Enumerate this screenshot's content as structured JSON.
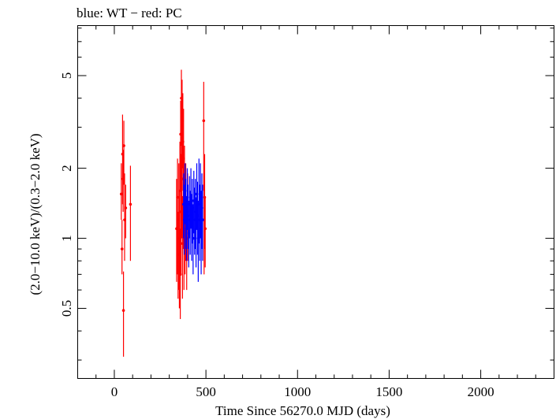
{
  "chart_data": {
    "type": "scatter",
    "title": "blue: WT − red: PC",
    "xlabel": "Time Since 56270.0 MJD (days)",
    "ylabel": "(2.0−10.0 keV)/(0.3−2.0 keV)",
    "xlim": [
      -200,
      2400
    ],
    "ylim": [
      0.25,
      8.2
    ],
    "yscale": "log",
    "xticks": [
      0,
      500,
      1000,
      1500,
      2000
    ],
    "xticklabels": [
      "0",
      "500",
      "1000",
      "1500",
      "2000"
    ],
    "yticks": [
      0.5,
      1,
      2,
      5
    ],
    "yticklabels": [
      "0.5",
      "1",
      "2",
      "5"
    ],
    "grid": false,
    "legend": "none",
    "series": [
      {
        "color": "#ff0000",
        "points": [
          {
            "x": 38,
            "y": 1.55,
            "lo": 1.2,
            "hi": 2.1
          },
          {
            "x": 42,
            "y": 0.9,
            "lo": 0.7,
            "hi": 1.2
          },
          {
            "x": 45,
            "y": 2.3,
            "lo": 1.4,
            "hi": 3.4
          },
          {
            "x": 48,
            "y": 1.8,
            "lo": 1.3,
            "hi": 2.4
          },
          {
            "x": 50,
            "y": 0.49,
            "lo": 0.31,
            "hi": 0.72
          },
          {
            "x": 52,
            "y": 2.5,
            "lo": 1.7,
            "hi": 3.2
          },
          {
            "x": 56,
            "y": 1.2,
            "lo": 0.8,
            "hi": 1.9
          },
          {
            "x": 62,
            "y": 1.35,
            "lo": 1.0,
            "hi": 1.7
          },
          {
            "x": 88,
            "y": 1.4,
            "lo": 0.8,
            "hi": 2.05
          },
          {
            "x": 340,
            "y": 1.1,
            "lo": 0.65,
            "hi": 1.8
          },
          {
            "x": 345,
            "y": 1.5,
            "lo": 0.7,
            "hi": 2.2
          },
          {
            "x": 348,
            "y": 0.85,
            "lo": 0.55,
            "hi": 1.3
          },
          {
            "x": 352,
            "y": 1.2,
            "lo": 0.6,
            "hi": 2.1
          },
          {
            "x": 355,
            "y": 1.0,
            "lo": 0.5,
            "hi": 1.6
          },
          {
            "x": 358,
            "y": 1.6,
            "lo": 0.9,
            "hi": 2.6
          },
          {
            "x": 360,
            "y": 0.7,
            "lo": 0.45,
            "hi": 1.1
          },
          {
            "x": 362,
            "y": 2.8,
            "lo": 1.6,
            "hi": 3.9
          },
          {
            "x": 364,
            "y": 1.3,
            "lo": 0.7,
            "hi": 2.3
          },
          {
            "x": 366,
            "y": 4.0,
            "lo": 2.5,
            "hi": 5.3
          },
          {
            "x": 368,
            "y": 1.8,
            "lo": 1.0,
            "hi": 3.0
          },
          {
            "x": 370,
            "y": 3.2,
            "lo": 2.0,
            "hi": 4.8
          },
          {
            "x": 372,
            "y": 0.95,
            "lo": 0.55,
            "hi": 1.5
          },
          {
            "x": 374,
            "y": 2.6,
            "lo": 1.6,
            "hi": 4.2
          },
          {
            "x": 376,
            "y": 1.5,
            "lo": 0.9,
            "hi": 2.4
          },
          {
            "x": 378,
            "y": 2.2,
            "lo": 1.2,
            "hi": 3.6
          },
          {
            "x": 380,
            "y": 1.1,
            "lo": 0.6,
            "hi": 1.8
          },
          {
            "x": 383,
            "y": 1.7,
            "lo": 0.9,
            "hi": 2.5
          },
          {
            "x": 386,
            "y": 1.2,
            "lo": 0.7,
            "hi": 1.9
          },
          {
            "x": 390,
            "y": 1.4,
            "lo": 0.8,
            "hi": 2.1
          },
          {
            "x": 395,
            "y": 1.0,
            "lo": 0.6,
            "hi": 1.5
          },
          {
            "x": 400,
            "y": 1.3,
            "lo": 0.8,
            "hi": 1.9
          },
          {
            "x": 488,
            "y": 3.2,
            "lo": 1.6,
            "hi": 4.7
          },
          {
            "x": 490,
            "y": 1.2,
            "lo": 0.7,
            "hi": 1.9
          },
          {
            "x": 493,
            "y": 1.5,
            "lo": 0.9,
            "hi": 2.3
          },
          {
            "x": 496,
            "y": 1.1,
            "lo": 0.75,
            "hi": 1.5
          }
        ]
      },
      {
        "color": "#0000ff",
        "points": [
          {
            "x": 378,
            "y": 1.4,
            "lo": 1.0,
            "hi": 1.9
          },
          {
            "x": 382,
            "y": 1.2,
            "lo": 0.85,
            "hi": 1.7
          },
          {
            "x": 386,
            "y": 1.6,
            "lo": 1.15,
            "hi": 2.1
          },
          {
            "x": 390,
            "y": 1.3,
            "lo": 0.9,
            "hi": 1.8
          },
          {
            "x": 394,
            "y": 1.1,
            "lo": 0.8,
            "hi": 1.5
          },
          {
            "x": 398,
            "y": 1.5,
            "lo": 1.1,
            "hi": 2.0
          },
          {
            "x": 402,
            "y": 1.25,
            "lo": 0.9,
            "hi": 1.7
          },
          {
            "x": 406,
            "y": 1.05,
            "lo": 0.75,
            "hi": 1.45
          },
          {
            "x": 410,
            "y": 1.4,
            "lo": 1.0,
            "hi": 1.85
          },
          {
            "x": 414,
            "y": 1.2,
            "lo": 0.85,
            "hi": 1.6
          },
          {
            "x": 418,
            "y": 1.5,
            "lo": 1.1,
            "hi": 2.0
          },
          {
            "x": 422,
            "y": 1.15,
            "lo": 0.8,
            "hi": 1.55
          },
          {
            "x": 426,
            "y": 1.35,
            "lo": 0.95,
            "hi": 1.8
          },
          {
            "x": 430,
            "y": 1.0,
            "lo": 0.7,
            "hi": 1.4
          },
          {
            "x": 434,
            "y": 1.45,
            "lo": 1.05,
            "hi": 1.95
          },
          {
            "x": 438,
            "y": 1.2,
            "lo": 0.85,
            "hi": 1.65
          },
          {
            "x": 442,
            "y": 1.3,
            "lo": 0.9,
            "hi": 1.8
          },
          {
            "x": 446,
            "y": 1.1,
            "lo": 0.75,
            "hi": 1.5
          },
          {
            "x": 450,
            "y": 1.55,
            "lo": 1.1,
            "hi": 2.1
          },
          {
            "x": 454,
            "y": 1.25,
            "lo": 0.85,
            "hi": 1.75
          },
          {
            "x": 458,
            "y": 1.0,
            "lo": 0.65,
            "hi": 1.45
          },
          {
            "x": 462,
            "y": 1.4,
            "lo": 0.95,
            "hi": 2.2
          },
          {
            "x": 466,
            "y": 1.2,
            "lo": 0.8,
            "hi": 1.7
          },
          {
            "x": 470,
            "y": 1.5,
            "lo": 1.0,
            "hi": 2.1
          },
          {
            "x": 474,
            "y": 1.1,
            "lo": 0.7,
            "hi": 1.6
          },
          {
            "x": 478,
            "y": 1.35,
            "lo": 0.9,
            "hi": 1.9
          },
          {
            "x": 482,
            "y": 1.2,
            "lo": 0.8,
            "hi": 1.7
          }
        ]
      }
    ]
  }
}
